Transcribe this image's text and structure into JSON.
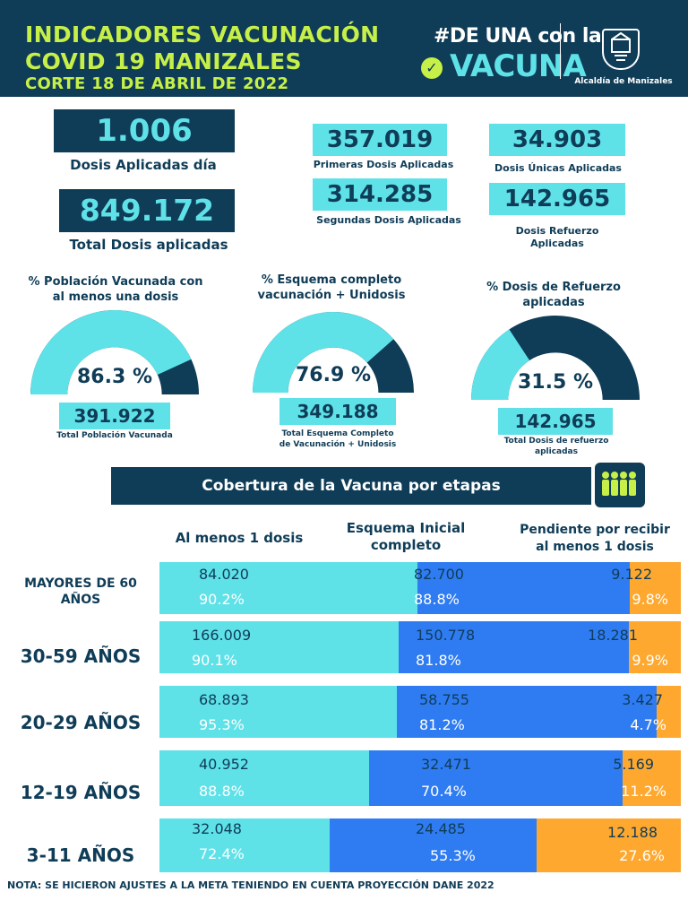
{
  "header": {
    "title_line1": "INDICADORES VACUNACIÓN",
    "title_line2": "COVID 19 MANIZALES",
    "title_line3": "CORTE 18 DE ABRIL DE 2022",
    "campaign_text_top": "#DE UNA con la",
    "campaign_text_bottom": "VACUNA",
    "org_name": "Alcaldía de Manizales"
  },
  "stats": {
    "daily_doses": {
      "value": "1.006",
      "label": "Dosis Aplicadas día"
    },
    "total_doses": {
      "value": "849.172",
      "label": "Total Dosis aplicadas"
    },
    "first_doses": {
      "value": "357.019",
      "label": "Primeras Dosis Aplicadas"
    },
    "second_doses": {
      "value": "314.285",
      "label": "Segundas Dosis Aplicadas"
    },
    "single_doses": {
      "value": "34.903",
      "label": "Dosis Únicas Aplicadas"
    },
    "booster_doses": {
      "value": "142.965",
      "label_line1": "Dosis Refuerzo",
      "label_line2": "Aplicadas"
    }
  },
  "gauges": [
    {
      "title_line1": "% Población Vacunada con",
      "title_line2": "al menos una dosis",
      "percent_text": "86.3 %",
      "percent": 86.3,
      "value": "391.922",
      "caption_line1": "Total Población Vacunada",
      "caption_line2": ""
    },
    {
      "title_line1": "% Esquema completo",
      "title_line2": "vacunación + Unidosis",
      "percent_text": "76.9 %",
      "percent": 76.9,
      "value": "349.188",
      "caption_line1": "Total Esquema Completo",
      "caption_line2": "de Vacunación + Unidosis"
    },
    {
      "title_line1": "% Dosis de Refuerzo",
      "title_line2": "aplicadas",
      "percent_text": "31.5 %",
      "percent": 31.5,
      "value": "142.965",
      "caption_line1": "Total Dosis de refuerzo",
      "caption_line2": "aplicadas"
    }
  ],
  "coverage": {
    "title": "Cobertura de la Vacuna por etapas",
    "columns": {
      "at_least_one": "Al menos 1 dosis",
      "initial_line1": "Esquema Inicial",
      "initial_line2": "completo",
      "pending_line1": "Pendiente por recibir",
      "pending_line2": "al menos 1 dosis"
    },
    "rows": [
      {
        "label_line1": "MAYORES DE 60",
        "label_line2": "AÑOS",
        "one_dose": "84.020",
        "one_dose_pct": "90.2%",
        "complete": "82.700",
        "complete_pct": "88.8%",
        "pending": "9.122",
        "pending_pct": "9.8%",
        "complete_share": 88.8,
        "pending_share": 9.8
      },
      {
        "label_line1": "30-59 AÑOS",
        "label_line2": "",
        "one_dose": "166.009",
        "one_dose_pct": "90.1%",
        "complete": "150.778",
        "complete_pct": "81.8%",
        "pending": "18.281",
        "pending_pct": "9.9%",
        "complete_share": 81.8,
        "pending_share": 9.9
      },
      {
        "label_line1": "20-29 AÑOS",
        "label_line2": "",
        "one_dose": "68.893",
        "one_dose_pct": "95.3%",
        "complete": "58.755",
        "complete_pct": "81.2%",
        "pending": "3.427",
        "pending_pct": "4.7%",
        "complete_share": 81.2,
        "pending_share": 4.7
      },
      {
        "label_line1": "12-19 AÑOS",
        "label_line2": "",
        "one_dose": "40.952",
        "one_dose_pct": "88.8%",
        "complete": "32.471",
        "complete_pct": "70.4%",
        "pending": "5.169",
        "pending_pct": "11.2%",
        "complete_share": 70.4,
        "pending_share": 11.2
      },
      {
        "label_line1": "3-11 AÑOS",
        "label_line2": "",
        "one_dose": "32.048",
        "one_dose_pct": "72.4%",
        "complete": "24.485",
        "complete_pct": "55.3%",
        "pending": "12.188",
        "pending_pct": "27.6%",
        "complete_share": 55.3,
        "pending_share": 27.6
      }
    ]
  },
  "footnote": "NOTA: SE HICIERON AJUSTES A LA META TENIENDO EN CUENTA PROYECCIÓN DANE 2022",
  "colors": {
    "navy": "#0f3c57",
    "cyan": "#5fe1e8",
    "lime": "#c6f048",
    "blue": "#2f7cf2",
    "orange": "#fea82f"
  },
  "icons": {
    "campaign": "syringe-check-icon",
    "crest": "shield-crest-icon",
    "people": "people-group-icon"
  }
}
